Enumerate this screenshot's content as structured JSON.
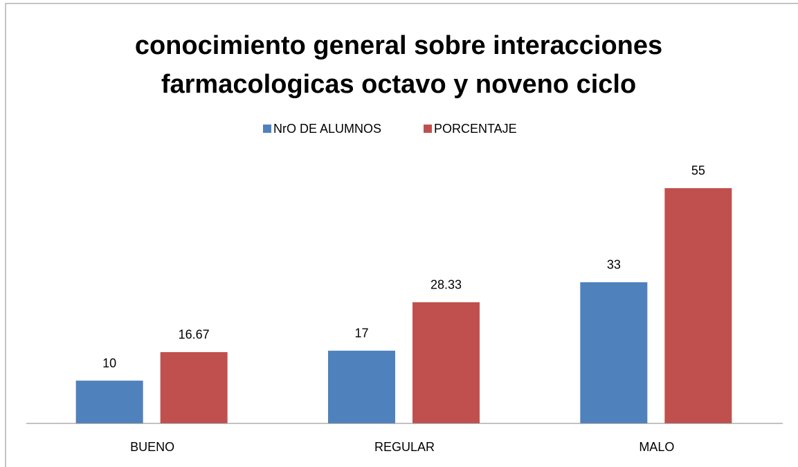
{
  "chart_data": {
    "type": "bar",
    "title": "conocimiento general sobre interacciones farmacologicas octavo y noveno ciclo",
    "categories": [
      "BUENO",
      "REGULAR",
      "MALO"
    ],
    "series": [
      {
        "name": "NrO DE ALUMNOS",
        "color": "#4f81bd",
        "values": [
          10,
          17,
          33
        ]
      },
      {
        "name": "PORCENTAJE",
        "color": "#c0504d",
        "values": [
          16.67,
          28.33,
          55
        ]
      }
    ],
    "ylim": [
      0,
      60
    ],
    "legend": "top"
  }
}
